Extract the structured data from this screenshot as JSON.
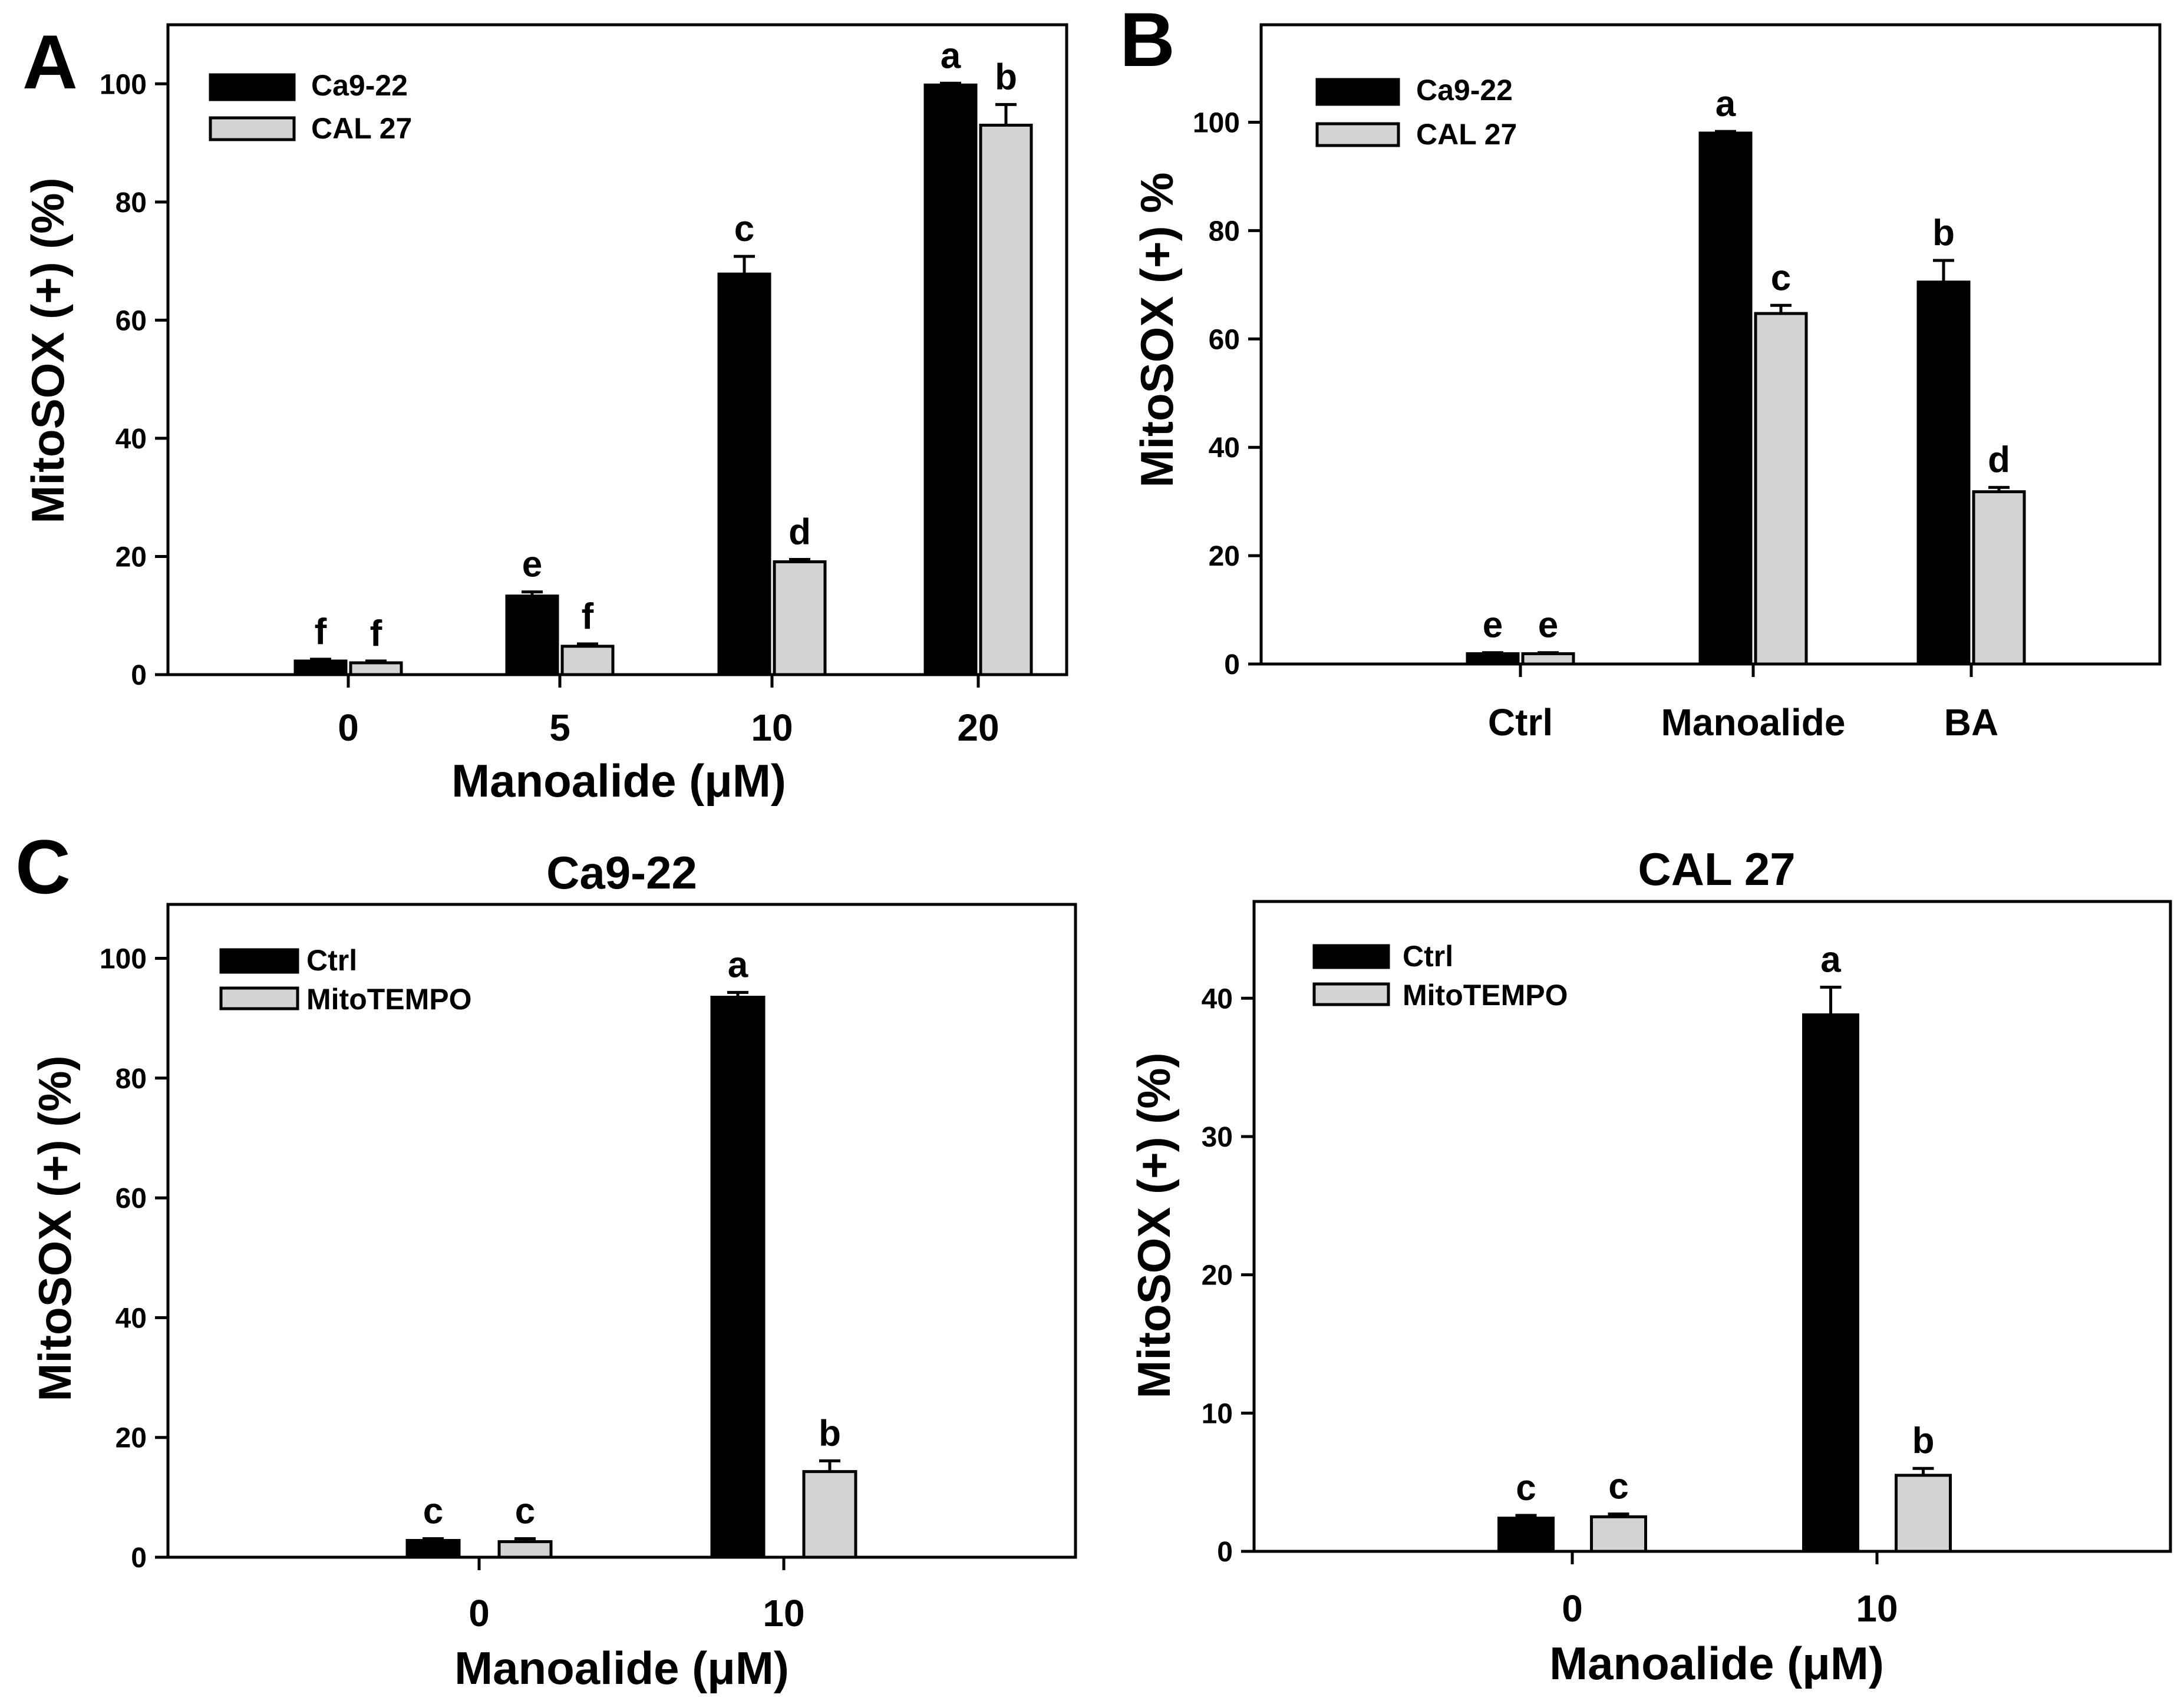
{
  "figure": {
    "colors": {
      "series1": "#000000",
      "series2": "#d3d3d3",
      "axis": "#000000",
      "background": "#ffffff"
    }
  },
  "chart_data": [
    {
      "id": "A",
      "panel_label": "A",
      "type": "bar",
      "title": "",
      "xlabel": "Manoalide (μM)",
      "ylabel": "MitoSOX (+) (%)",
      "ylim": [
        0,
        110
      ],
      "yticks": [
        0,
        20,
        40,
        60,
        80,
        100
      ],
      "categories": [
        "0",
        "5",
        "10",
        "20"
      ],
      "legend_position": "top-left",
      "series": [
        {
          "name": "Ca9-22",
          "color": "#000000",
          "values": [
            2.3,
            13.3,
            67.8,
            99.8
          ],
          "errors": [
            0.3,
            0.7,
            3.0,
            0.3
          ],
          "labels": [
            "f",
            "e",
            "c",
            "a"
          ]
        },
        {
          "name": "CAL 27",
          "color": "#d3d3d3",
          "values": [
            2.0,
            4.8,
            19.1,
            93.0
          ],
          "errors": [
            0.3,
            0.4,
            0.4,
            3.5
          ],
          "labels": [
            "f",
            "f",
            "d",
            "b"
          ]
        }
      ]
    },
    {
      "id": "B",
      "panel_label": "B",
      "type": "bar",
      "title": "",
      "xlabel": "",
      "ylabel": "MitoSOX (+) %",
      "ylim": [
        0,
        118
      ],
      "yticks": [
        0,
        20,
        40,
        60,
        80,
        100
      ],
      "categories": [
        "Ctrl",
        "Manoalide",
        "BA"
      ],
      "legend_position": "top-left",
      "series": [
        {
          "name": "Ca9-22",
          "color": "#000000",
          "values": [
            1.9,
            98.0,
            70.5
          ],
          "errors": [
            0.2,
            0.3,
            4.0
          ],
          "labels": [
            "e",
            "a",
            "b"
          ]
        },
        {
          "name": "CAL 27",
          "color": "#d3d3d3",
          "values": [
            1.9,
            64.7,
            31.8
          ],
          "errors": [
            0.2,
            1.5,
            0.8
          ],
          "labels": [
            "e",
            "c",
            "d"
          ]
        }
      ]
    },
    {
      "id": "C1",
      "panel_label": "C",
      "type": "bar",
      "title": "Ca9-22",
      "xlabel": "Manoalide (μM)",
      "ylabel": "MitoSOX (+) (%)",
      "ylim": [
        0,
        109
      ],
      "yticks": [
        0,
        20,
        40,
        60,
        80,
        100
      ],
      "categories": [
        "0",
        "10"
      ],
      "legend_position": "top-left",
      "series": [
        {
          "name": "Ctrl",
          "color": "#000000",
          "values": [
            2.8,
            93.5
          ],
          "errors": [
            0.3,
            0.8
          ],
          "labels": [
            "c",
            "a"
          ]
        },
        {
          "name": "MitoTEMPO",
          "color": "#d3d3d3",
          "values": [
            2.6,
            14.3
          ],
          "errors": [
            0.5,
            1.8
          ],
          "labels": [
            "c",
            "b"
          ]
        }
      ]
    },
    {
      "id": "C2",
      "panel_label": "",
      "type": "bar",
      "title": "CAL 27",
      "xlabel": "Manoalide (μM)",
      "ylabel": "MitoSOX (+) (%)",
      "ylim": [
        0,
        47
      ],
      "yticks": [
        0,
        10,
        20,
        30,
        40
      ],
      "categories": [
        "0",
        "10"
      ],
      "legend_position": "top-left",
      "series": [
        {
          "name": "Ctrl",
          "color": "#000000",
          "values": [
            2.4,
            38.8
          ],
          "errors": [
            0.2,
            2.0
          ],
          "labels": [
            "c",
            "a"
          ]
        },
        {
          "name": "MitoTEMPO",
          "color": "#d3d3d3",
          "values": [
            2.5,
            5.5
          ],
          "errors": [
            0.2,
            0.5
          ],
          "labels": [
            "c",
            "b"
          ]
        }
      ]
    }
  ]
}
